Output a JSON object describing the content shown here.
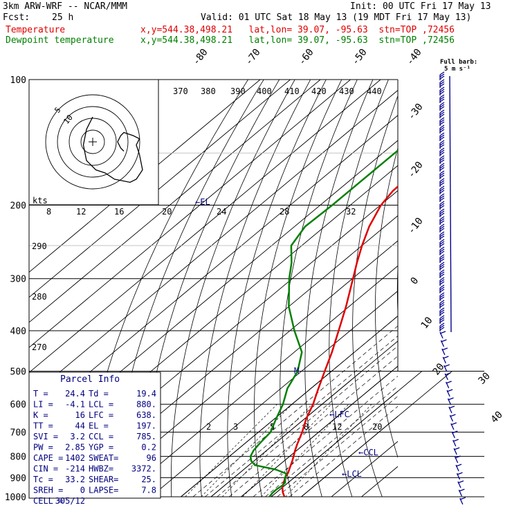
{
  "header": {
    "model": "3km ARW-WRF -- NCAR/MMM",
    "init": "Init: 00 UTC Fri 17 May 13",
    "fcst_label": "Fcst:",
    "fcst_value": "25 h",
    "valid": "Valid: 01 UTC Sat 18 May 13 (19 MDT Fri 17 May 13)"
  },
  "legend": [
    {
      "name": "Temperature",
      "info": "x,y=544.38,498.21   lat,lon= 39.07, -95.63  stn=TOP ,72456",
      "color": "#e00000"
    },
    {
      "name": "Dewpoint temperature",
      "info": "x,y=544.38,498.21   lat,lon= 39.07, -95.63  stn=TOP ,72456",
      "color": "#008000"
    }
  ],
  "barb_title": "Full barb:",
  "barb_unit": "5 m s⁻¹",
  "hodograph": {
    "unit": "kts",
    "ring_labels": [
      "5",
      "10"
    ]
  },
  "chart_data": {
    "type": "line",
    "chart": "Skew-T log-P sounding",
    "pressure_axis": {
      "ticks": [
        100,
        200,
        300,
        400,
        500,
        600,
        700,
        800,
        900,
        1000
      ],
      "scale": "log"
    },
    "isotherm_labels": [
      "-80",
      "-70",
      "-60",
      "-50",
      "-40",
      "-30",
      "-20",
      "-10",
      "0",
      "10",
      "20",
      "30",
      "40"
    ],
    "theta_labels_top": [
      "370",
      "380",
      "390",
      "400",
      "410",
      "420",
      "430",
      "440"
    ],
    "theta_labels_left": [
      "290",
      "280",
      "270"
    ],
    "mixing_ratio_row1": [
      "8",
      "12",
      "16",
      "20",
      "24",
      "28",
      "32"
    ],
    "mixing_ratio_row2": [
      "2",
      "3",
      "5",
      "8",
      "12",
      "20"
    ],
    "level_markers": [
      "←EL",
      "M",
      "←LFC",
      "←CCL",
      "←LCL"
    ],
    "series": [
      {
        "name": "Temperature",
        "color": "#e00000",
        "p": [
          1000,
          975,
          950,
          925,
          900,
          875,
          850,
          825,
          800,
          775,
          750,
          700,
          650,
          600,
          550,
          500,
          450,
          400,
          350,
          300,
          275,
          250,
          225,
          200,
          185,
          175,
          160,
          150,
          140,
          125,
          110,
          100
        ],
        "t": [
          24.4,
          22.0,
          20.0,
          18.5,
          17.0,
          16.0,
          14.5,
          13.0,
          11.3,
          9.5,
          7.8,
          4.5,
          0.5,
          -3.0,
          -7.5,
          -12.3,
          -17.5,
          -23.8,
          -31.0,
          -39.8,
          -44.8,
          -50.0,
          -55.2,
          -59.8,
          -61.5,
          -61.8,
          -61.0,
          -60.0,
          -59.0,
          -57.0,
          -56.0,
          -55.0
        ]
      },
      {
        "name": "Dewpoint temperature",
        "color": "#008000",
        "p": [
          1000,
          980,
          960,
          940,
          925,
          900,
          880,
          860,
          840,
          820,
          800,
          775,
          750,
          725,
          700,
          650,
          600,
          550,
          500,
          450,
          400,
          350,
          300,
          275,
          250,
          225,
          200,
          185,
          175,
          160,
          150,
          130,
          110,
          100
        ],
        "t": [
          19.4,
          18.9,
          18.8,
          19.2,
          19.0,
          17.0,
          15.8,
          10.5,
          2.0,
          -1.0,
          -3.0,
          -4.3,
          -5.0,
          -5.5,
          -6.0,
          -9.5,
          -13.0,
          -17.8,
          -21.3,
          -27.5,
          -38.5,
          -50.0,
          -61.0,
          -66.5,
          -73.5,
          -76.5,
          -76.0,
          -76.0,
          -76.0,
          -76.0,
          -76.0,
          -76.0,
          -76.0,
          -76.0
        ]
      }
    ],
    "hodograph_path": [
      [
        0,
        -8
      ],
      [
        -2,
        -4
      ],
      [
        -3,
        1
      ],
      [
        -2,
        6
      ],
      [
        1,
        9
      ],
      [
        4,
        10
      ],
      [
        7,
        12
      ],
      [
        12,
        13
      ],
      [
        14,
        12
      ],
      [
        16,
        9
      ],
      [
        15,
        4
      ],
      [
        14,
        1
      ],
      [
        15,
        -1
      ],
      [
        13,
        -2
      ],
      [
        10,
        -3
      ],
      [
        9,
        -2
      ],
      [
        8,
        0
      ],
      [
        9,
        2
      ],
      [
        10,
        3
      ]
    ]
  },
  "parcel_info": {
    "title": "Parcel Info",
    "rows": [
      [
        "T  =",
        "24.4",
        "Td =",
        "19.4"
      ],
      [
        "LI =",
        "-4.1",
        "LCL =",
        "880."
      ],
      [
        "K  =",
        "16",
        "LFC =",
        "638."
      ],
      [
        "TT =",
        "44",
        "EL  =",
        "197."
      ],
      [
        "SVI =",
        "3.2",
        "CCL =",
        "785."
      ],
      [
        "PW =",
        "2.85",
        "YGP =",
        "0.2"
      ],
      [
        "CAPE =",
        "1402",
        "SWEAT=",
        "96"
      ],
      [
        "CIN =",
        "-214",
        "HWBZ=",
        "3372."
      ],
      [
        "Tc =",
        "33.2",
        "SHEAR=",
        "25."
      ],
      [
        "SREH =",
        "0",
        "LAPSE=",
        "7.8"
      ],
      [
        "CELL =",
        "305/12",
        "",
        ""
      ]
    ]
  }
}
